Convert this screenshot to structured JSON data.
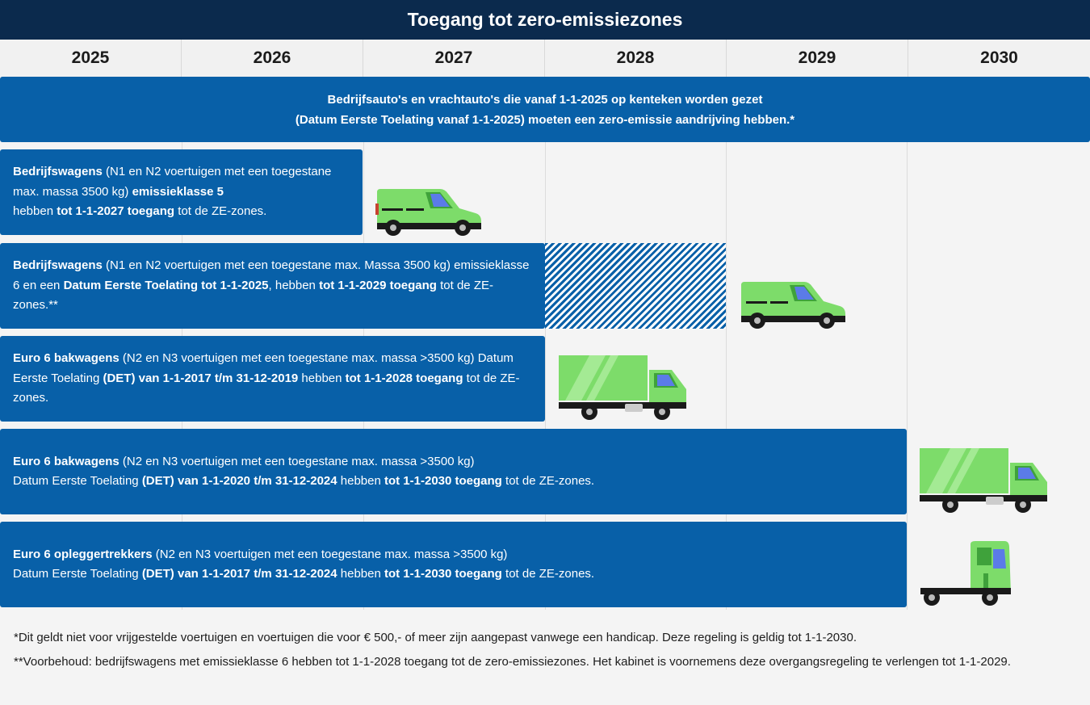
{
  "title": "Toegang tot zero-emissiezones",
  "years": [
    "2025",
    "2026",
    "2027",
    "2028",
    "2029",
    "2030"
  ],
  "banner": {
    "line1": "Bedrijfsauto's en vrachtauto's die vanaf 1-1-2025 op kenteken worden gezet",
    "line2": "(Datum Eerste Toelating vanaf 1-1-2025) moeten een zero-emissie aandrijving hebben.*"
  },
  "rows": [
    {
      "s1": "Bedrijfswagens",
      "s2": " (N1 en N2 voertuigen met een toegestane max. massa 3500 kg) ",
      "s3": "emissieklasse 5",
      "s4": " hebben ",
      "s5": "tot 1-1-2027 toegang",
      "s6": " tot de ZE-zones.",
      "vehicle": "van-icon"
    },
    {
      "s1": "Bedrijfswagens",
      "s2": " (N1 en N2 voertuigen met een toegestane max. Massa 3500 kg) emissieklasse 6 en een ",
      "s3": "Datum Eerste Toelating tot 1-1-2025",
      "s4": ", hebben ",
      "s5": "tot 1-1-2029 toegang",
      "s6": " tot de ZE-zones.**",
      "vehicle": "van-icon"
    },
    {
      "s1": "Euro 6 bakwagens",
      "s2": " (N2 en N3 voertuigen met een toegestane max. massa >3500 kg) Datum Eerste Toelating ",
      "s3": "(DET) van 1-1-2017 t/m 31-12-2019",
      "s4": " hebben ",
      "s5": "tot 1-1-2028 toegang",
      "s6": " tot de ZE-zones.",
      "vehicle": "box-truck-icon"
    },
    {
      "s1": "Euro 6 bakwagens",
      "s2": " (N2 en N3 voertuigen met een toegestane max. massa >3500 kg)",
      "s3": "(DET) van 1-1-2020 t/m 31-12-2024",
      "s3pre": "Datum Eerste Toelating ",
      "s4": " hebben ",
      "s5": "tot 1-1-2030 toegang",
      "s6": " tot de ZE-zones.",
      "vehicle": "box-truck-icon"
    },
    {
      "s1": "Euro 6 opleggertrekkers",
      "s2": " (N2 en N3 voertuigen met een toegestane max. massa >3500 kg)",
      "s3": "(DET) van 1-1-2017 t/m 31-12-2024",
      "s3pre": "Datum Eerste Toelating ",
      "s4": " hebben ",
      "s5": "tot 1-1-2030 toegang",
      "s6": " tot de ZE-zones.",
      "vehicle": "tractor-unit-icon"
    }
  ],
  "footnotes": {
    "f1": "*Dit geldt niet voor vrijgestelde voertuigen en voertuigen die voor € 500,- of meer zijn aangepast vanwege een handicap. Deze regeling is geldig tot 1-1-2030.",
    "f2": "**Voorbehoud: bedrijfswagens met emissieklasse 6 hebben tot 1-1-2028 toegang tot de zero-emissiezones. Het kabinet is voornemens deze overgangsregeling te verlengen tot 1-1-2029."
  },
  "colors": {
    "title_bg": "#0b2a4d",
    "bar": "#0860a8",
    "vehicle_green": "#7ddc6a"
  }
}
